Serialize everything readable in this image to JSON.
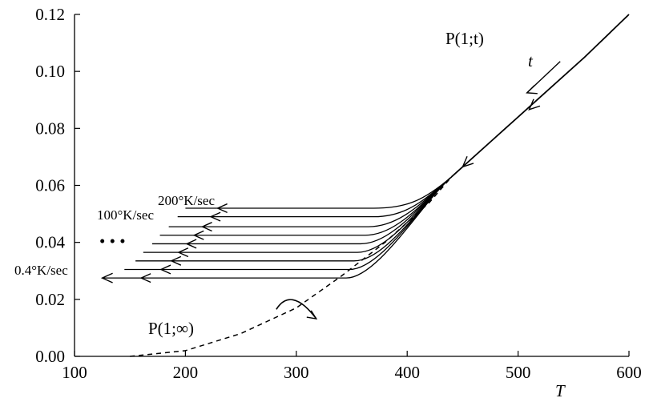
{
  "chart_data": {
    "type": "line",
    "title": "",
    "xlabel": "T",
    "ylabel": "",
    "xlim": [
      100,
      600
    ],
    "ylim": [
      0.0,
      0.12
    ],
    "grid": false,
    "x_ticks": [
      100,
      200,
      300,
      400,
      500,
      600
    ],
    "x_tick_labels": [
      "100",
      "200",
      "300",
      "400",
      "500",
      "600"
    ],
    "y_ticks": [
      0.0,
      0.02,
      0.04,
      0.06,
      0.08,
      0.1,
      0.12
    ],
    "y_tick_labels": [
      "0.00",
      "0.02",
      "0.04",
      "0.06",
      "0.08",
      "0.10",
      "0.12"
    ],
    "main_curve": {
      "label": "P(1;t)",
      "x": [
        440,
        480,
        520,
        560,
        600
      ],
      "y": [
        0.063,
        0.077,
        0.091,
        0.105,
        0.12
      ]
    },
    "equilibrium_curve": {
      "label": "P(1;∞)",
      "x": [
        150,
        200,
        250,
        300,
        340,
        380,
        420,
        440
      ],
      "y": [
        0.0,
        0.002,
        0.008,
        0.017,
        0.028,
        0.04,
        0.054,
        0.063
      ]
    },
    "cooling_curves": [
      {
        "rate_label": "200°K/sec",
        "plateau": 0.052,
        "x_left": 200,
        "x_depart": 370
      },
      {
        "rate_label": "100°K/sec",
        "plateau": 0.049,
        "x_left": 193,
        "x_depart": 370
      },
      {
        "rate_label": "",
        "plateau": 0.0455,
        "x_left": 185,
        "x_depart": 365
      },
      {
        "rate_label": "",
        "plateau": 0.0425,
        "x_left": 177,
        "x_depart": 362
      },
      {
        "rate_label": "",
        "plateau": 0.0395,
        "x_left": 170,
        "x_depart": 358
      },
      {
        "rate_label": "",
        "plateau": 0.0365,
        "x_left": 162,
        "x_depart": 355
      },
      {
        "rate_label": "",
        "plateau": 0.0335,
        "x_left": 155,
        "x_depart": 352
      },
      {
        "rate_label": "",
        "plateau": 0.0305,
        "x_left": 145,
        "x_depart": 348
      },
      {
        "rate_label": "0.4°K/sec",
        "plateau": 0.0275,
        "x_left": 125,
        "x_depart": 345
      }
    ],
    "annotations": {
      "main_curve_label": "P(1;t)",
      "time_label": "t",
      "equilibrium_label": "P(1;∞)",
      "ellipsis": "• • •",
      "rate_top": "200°K/sec",
      "rate_second": "100°K/sec",
      "rate_bottom": "0.4°K/sec"
    }
  }
}
